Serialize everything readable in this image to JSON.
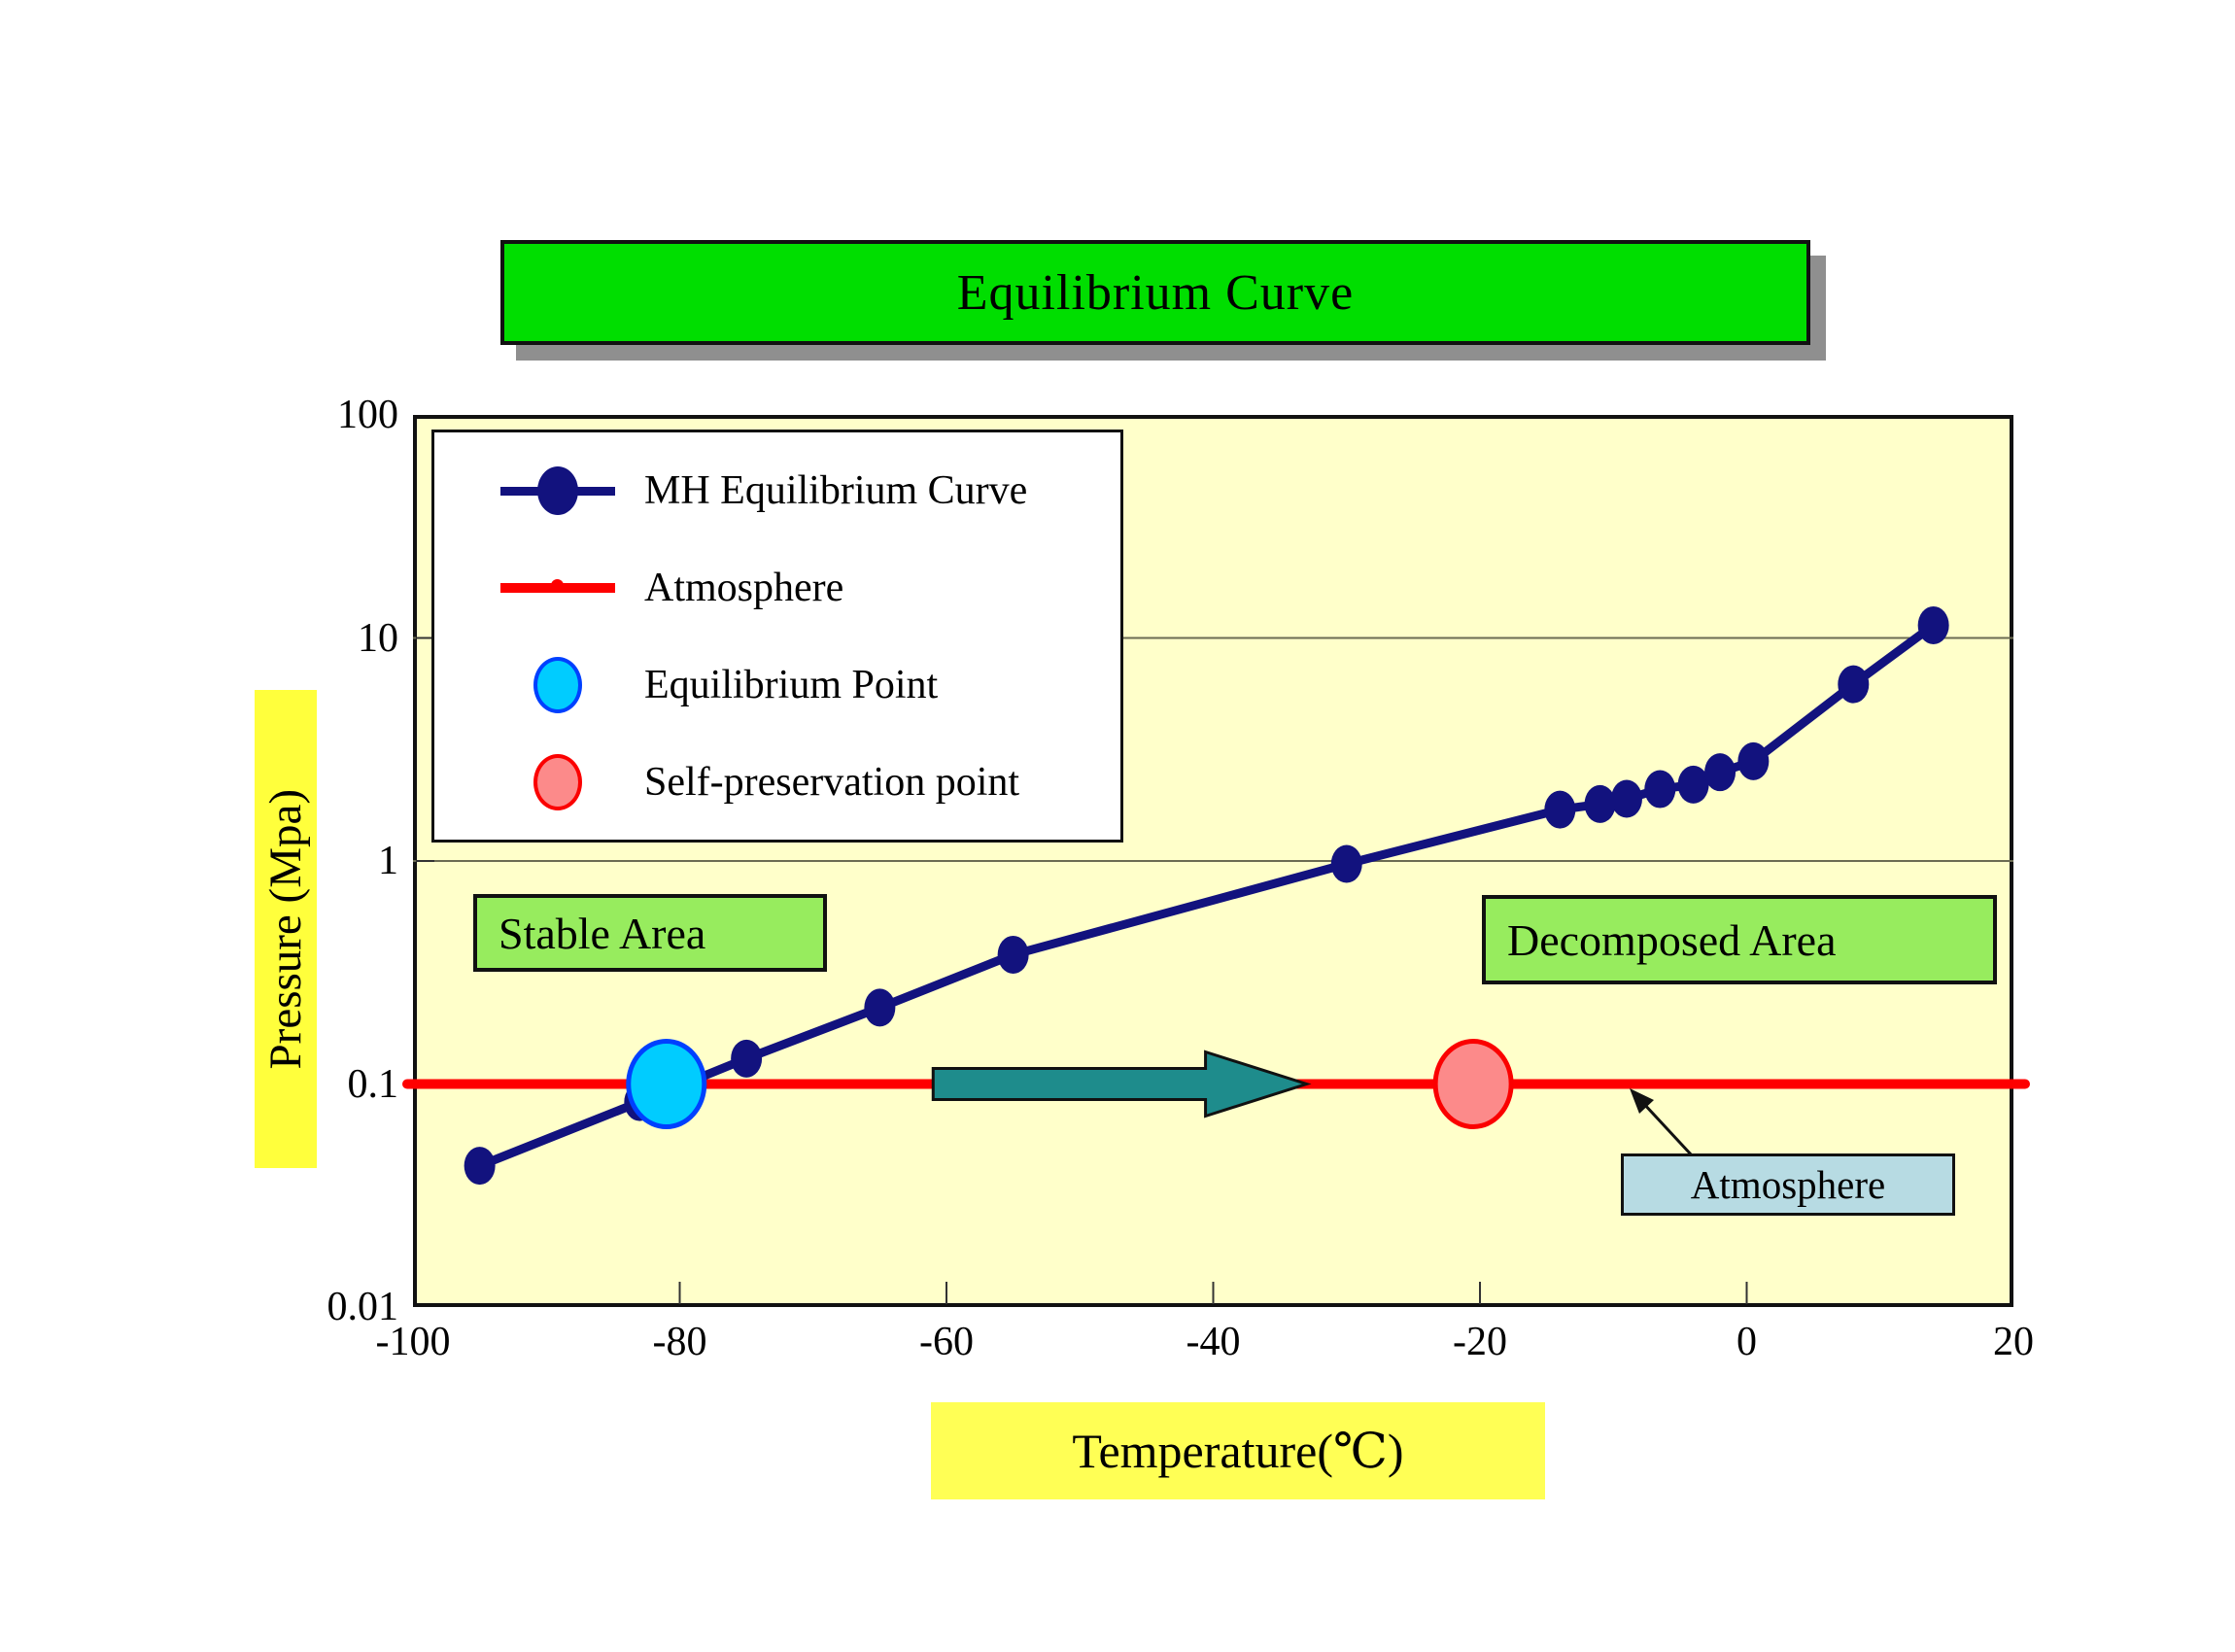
{
  "title": "Equilibrium Curve",
  "legend": {
    "items": [
      {
        "label": "MH Equilibrium Curve",
        "swatch": "navy-line-with-dot"
      },
      {
        "label": "Atmosphere",
        "swatch": "red-line"
      },
      {
        "label": "Equilibrium Point",
        "swatch": "cyan-circle"
      },
      {
        "label": "Self-preservation point",
        "swatch": "pink-circle"
      }
    ]
  },
  "annotations": {
    "stable_area": "Stable Area",
    "decomposed_area": "Decomposed Area",
    "atmosphere_label": "Atmosphere"
  },
  "axes": {
    "x_title": "Temperature(℃)",
    "y_title": "Pressure (Mpa)",
    "x_ticks": [
      -100,
      -80,
      -60,
      -40,
      -20,
      0,
      20
    ],
    "x_tick_labels": [
      "-100",
      "-80",
      "-60",
      "-40",
      "-20",
      "0",
      "20"
    ],
    "y_ticks": [
      100,
      10,
      1,
      0.1,
      0.01
    ],
    "y_tick_labels": [
      "100",
      "10",
      "1",
      "0.1",
      "0.01"
    ],
    "x_range": [
      -100,
      20
    ],
    "y_range_log": [
      0.01,
      100
    ]
  },
  "chart_data": {
    "type": "line",
    "title": "Equilibrium Curve",
    "xlabel": "Temperature(℃)",
    "ylabel": "Pressure (Mpa)",
    "xlim": [
      -100,
      20
    ],
    "ylim": [
      0.01,
      100
    ],
    "y_scale": "log",
    "grid": "horizontal gridlines at 10 and 1",
    "legend_position": "top-left inside plot",
    "gridlines_y": [
      10,
      1
    ],
    "series": [
      {
        "name": "MH Equilibrium Curve",
        "color": "#12127e",
        "marker": "filled-circle",
        "points": [
          [
            -95,
            0.043
          ],
          [
            -83,
            0.083
          ],
          [
            -75,
            0.13
          ],
          [
            -65,
            0.22
          ],
          [
            -55,
            0.38
          ],
          [
            -30,
            0.97
          ],
          [
            -14,
            1.7
          ],
          [
            -11,
            1.8
          ],
          [
            -9,
            1.9
          ],
          [
            -6.5,
            2.1
          ],
          [
            -4,
            2.2
          ],
          [
            -2,
            2.5
          ],
          [
            0.5,
            2.8
          ],
          [
            8,
            6.2
          ],
          [
            14,
            11.4
          ]
        ]
      },
      {
        "name": "Atmosphere",
        "color": "#fe0000",
        "marker": "none",
        "points": [
          [
            -100,
            0.1
          ],
          [
            20,
            0.1
          ]
        ]
      }
    ],
    "special_points": [
      {
        "name": "Equilibrium Point",
        "x": -81,
        "y": 0.1,
        "fill": "#00ccff",
        "stroke": "#0040ff"
      },
      {
        "name": "Self-preservation point",
        "x": -20.5,
        "y": 0.1,
        "fill": "#fc8a8a",
        "stroke": "#fb0000"
      }
    ],
    "transition_arrow": {
      "from_x": -61,
      "to_x": -33,
      "y": 0.1,
      "fill": "#1e8c8c"
    }
  },
  "colors": {
    "title_banner": "#00de00",
    "plot_background": "#ffffca",
    "curve": "#12127e",
    "atmosphere_line": "#fe0000",
    "area_label_green": "#97ec5e",
    "axis_label_yellow": "#ffff3c",
    "atmosphere_box_blue": "#b7dbe3",
    "arrow_teal": "#1e8c8c"
  }
}
